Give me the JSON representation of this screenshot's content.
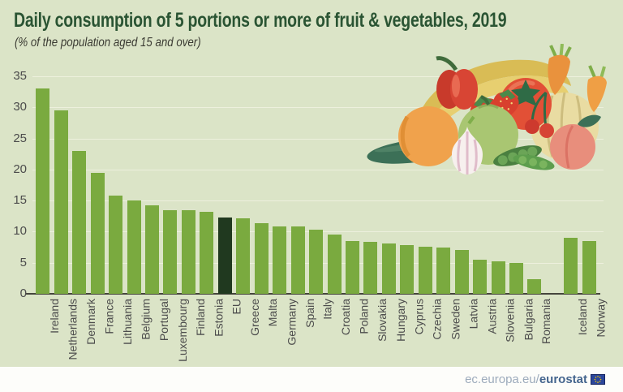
{
  "page": {
    "title": "Daily consumption of 5 portions or more of fruit & vegetables, 2019",
    "subtitle": "(% of the population aged 15 and over)"
  },
  "chart_data": {
    "type": "bar",
    "title": "Daily consumption of 5 portions or more of fruit & vegetables, 2019",
    "subtitle": "(% of the population aged 15 and over)",
    "categories": [
      "Ireland",
      "Netherlands",
      "Denmark",
      "France",
      "Lithuania",
      "Belgium",
      "Portugal",
      "Luxembourg",
      "Finland",
      "Estonia",
      "EU",
      "Greece",
      "Malta",
      "Germany",
      "Spain",
      "Italy",
      "Croatia",
      "Poland",
      "Slovakia",
      "Hungary",
      "Cyprus",
      "Czechia",
      "Sweden",
      "Latvia",
      "Austria",
      "Slovenia",
      "Bulgaria",
      "Romania",
      "Iceland",
      "Norway"
    ],
    "values": [
      33.0,
      29.5,
      23.0,
      19.5,
      15.8,
      15.0,
      14.3,
      13.5,
      13.4,
      13.2,
      12.3,
      12.2,
      11.4,
      10.8,
      10.8,
      10.3,
      9.6,
      8.5,
      8.4,
      8.1,
      7.8,
      7.6,
      7.4,
      7.1,
      5.5,
      5.2,
      4.9,
      2.3,
      9.0,
      8.5
    ],
    "highlight_category": "EU",
    "separator_after": "Romania",
    "ylim": [
      0,
      35
    ],
    "yticks": [
      0,
      5,
      10,
      15,
      20,
      25,
      30,
      35
    ],
    "grid": true,
    "legend": false,
    "xlabel": "",
    "ylabel": "",
    "colors": {
      "background": "#dbe4c7",
      "bar": "#7aaa3f",
      "highlight": "#20391f",
      "gridline": "#edf0dd",
      "axis_line": "#45453c",
      "tick_label": "#4c4c4c",
      "title": "#2a5433"
    }
  },
  "illustration": {
    "name": "fruit-vegetables-illustration",
    "items": [
      "cucumber",
      "orange",
      "banana",
      "red-pepper",
      "strawberry",
      "green-apple",
      "tomato",
      "carrot",
      "cherries",
      "melon",
      "peach",
      "pea-pod",
      "garlic"
    ]
  },
  "footer": {
    "link_prefix": "ec.europa.eu/",
    "brand": "eurostat",
    "flag_icon": "eu-flag-icon"
  }
}
